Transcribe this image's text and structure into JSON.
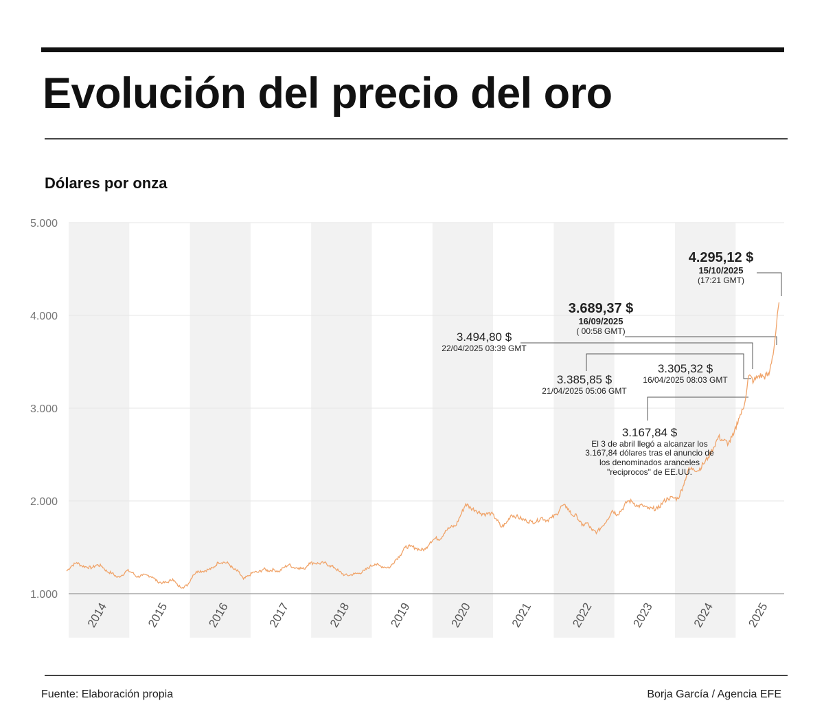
{
  "header": {
    "title": "Evolución del precio del oro",
    "subtitle": "Dólares por onza"
  },
  "footer": {
    "source": "Fuente: Elaboración propia",
    "credit": "Borja García / Agencia EFE"
  },
  "chart_data": {
    "type": "line",
    "title": "Evolución del precio del oro",
    "ylabel": "Dólares por onza",
    "ylim": [
      1000,
      5000
    ],
    "yticks": [
      {
        "value": 1000,
        "label": "1.000"
      },
      {
        "value": 2000,
        "label": "2.000"
      },
      {
        "value": 3000,
        "label": "3.000"
      },
      {
        "value": 4000,
        "label": "4.000"
      },
      {
        "value": 5000,
        "label": "5.000"
      }
    ],
    "xticks": [
      "2014",
      "2015",
      "2016",
      "2017",
      "2018",
      "2019",
      "2020",
      "2021",
      "2022",
      "2023",
      "2024",
      "2025"
    ],
    "grid": true,
    "line_color": "#f0a46a",
    "band_color": "#f2f2f2",
    "series": [
      {
        "x": [
          "2014-01",
          "2014-02",
          "2014-03",
          "2014-04",
          "2014-05",
          "2014-06",
          "2014-07",
          "2014-08",
          "2014-09",
          "2014-10",
          "2014-11",
          "2014-12",
          "2015-01",
          "2015-02",
          "2015-03",
          "2015-04",
          "2015-05",
          "2015-06",
          "2015-07",
          "2015-08",
          "2015-09",
          "2015-10",
          "2015-11",
          "2015-12",
          "2016-01",
          "2016-02",
          "2016-03",
          "2016-04",
          "2016-05",
          "2016-06",
          "2016-07",
          "2016-08",
          "2016-09",
          "2016-10",
          "2016-11",
          "2016-12",
          "2017-01",
          "2017-02",
          "2017-03",
          "2017-04",
          "2017-05",
          "2017-06",
          "2017-07",
          "2017-08",
          "2017-09",
          "2017-10",
          "2017-11",
          "2017-12",
          "2018-01",
          "2018-02",
          "2018-03",
          "2018-04",
          "2018-05",
          "2018-06",
          "2018-07",
          "2018-08",
          "2018-09",
          "2018-10",
          "2018-11",
          "2018-12",
          "2019-01",
          "2019-02",
          "2019-03",
          "2019-04",
          "2019-05",
          "2019-06",
          "2019-07",
          "2019-08",
          "2019-09",
          "2019-10",
          "2019-11",
          "2019-12",
          "2020-01",
          "2020-02",
          "2020-03",
          "2020-04",
          "2020-05",
          "2020-06",
          "2020-07",
          "2020-08",
          "2020-09",
          "2020-10",
          "2020-11",
          "2020-12",
          "2021-01",
          "2021-02",
          "2021-03",
          "2021-04",
          "2021-05",
          "2021-06",
          "2021-07",
          "2021-08",
          "2021-09",
          "2021-10",
          "2021-11",
          "2021-12",
          "2022-01",
          "2022-02",
          "2022-03",
          "2022-04",
          "2022-05",
          "2022-06",
          "2022-07",
          "2022-08",
          "2022-09",
          "2022-10",
          "2022-11",
          "2022-12",
          "2023-01",
          "2023-02",
          "2023-03",
          "2023-04",
          "2023-05",
          "2023-06",
          "2023-07",
          "2023-08",
          "2023-09",
          "2023-10",
          "2023-11",
          "2023-12",
          "2024-01",
          "2024-02",
          "2024-03",
          "2024-04",
          "2024-05",
          "2024-06",
          "2024-07",
          "2024-08",
          "2024-09",
          "2024-10",
          "2024-11",
          "2024-12",
          "2025-01",
          "2025-02",
          "2025-03",
          "2025-04",
          "2025-05",
          "2025-06",
          "2025-07",
          "2025-08",
          "2025-09",
          "2025-10"
        ],
        "y": [
          1244,
          1300,
          1336,
          1299,
          1288,
          1279,
          1311,
          1296,
          1238,
          1222,
          1176,
          1200,
          1251,
          1227,
          1179,
          1198,
          1199,
          1181,
          1130,
          1117,
          1124,
          1159,
          1086,
          1068,
          1097,
          1200,
          1246,
          1242,
          1260,
          1276,
          1337,
          1340,
          1326,
          1266,
          1238,
          1157,
          1192,
          1234,
          1231,
          1266,
          1246,
          1260,
          1236,
          1283,
          1314,
          1280,
          1281,
          1265,
          1331,
          1331,
          1325,
          1334,
          1303,
          1282,
          1238,
          1201,
          1198,
          1215,
          1221,
          1250,
          1291,
          1320,
          1300,
          1286,
          1284,
          1359,
          1413,
          1500,
          1510,
          1495,
          1471,
          1480,
          1560,
          1597,
          1591,
          1683,
          1715,
          1732,
          1847,
          1968,
          1922,
          1900,
          1866,
          1858,
          1867,
          1808,
          1718,
          1760,
          1850,
          1834,
          1807,
          1785,
          1775,
          1777,
          1821,
          1790,
          1817,
          1856,
          1948,
          1937,
          1849,
          1836,
          1733,
          1764,
          1681,
          1665,
          1726,
          1798,
          1898,
          1854,
          1912,
          2000,
          1992,
          1942,
          1951,
          1918,
          1916,
          1916,
          1985,
          2027,
          2034,
          2023,
          2158,
          2331,
          2350,
          2326,
          2398,
          2472,
          2570,
          2690,
          2650,
          2620,
          2710,
          2890,
          3000,
          3350,
          3290,
          3350,
          3340,
          3360,
          3650,
          4140
        ]
      }
    ],
    "annotations": [
      {
        "value": "4.295,12 $",
        "date": "15/10/2025",
        "time": "(17:21 GMT)"
      },
      {
        "value": "3.689,37 $",
        "date": "16/09/2025",
        "time": "( 00:58 GMT)"
      },
      {
        "value": "3.494,80 $",
        "date": "22/04/2025 03:39 GMT"
      },
      {
        "value": "3.385,85 $",
        "date": "21/04/2025 05:06 GMT"
      },
      {
        "value": "3.305,32 $",
        "date": "16/04/2025 08:03 GMT"
      },
      {
        "value": "3.167,84 $",
        "note": [
          "El 3 de abril llegó a alcanzar los",
          "3.167,84 dólares tras el anuncio de",
          "los denominados aranceles",
          "\"reciprocos\" de EE.UU."
        ]
      }
    ]
  }
}
